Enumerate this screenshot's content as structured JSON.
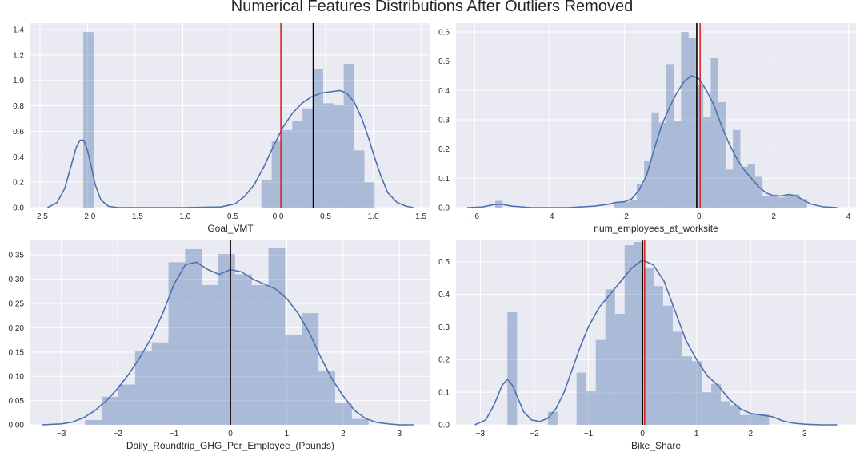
{
  "figure": {
    "title": "Numerical Features Distributions After Outliers Removed"
  },
  "style": {
    "panel_bg": "#eaeaf2",
    "grid": "#ffffff",
    "bar": "#4c72b0",
    "bar_opacity": 0.4,
    "kde": "#4c72b0",
    "mean_line": "#d62728",
    "median_line": "#000000"
  },
  "chart_data": [
    {
      "type": "bar",
      "id": "goal-vmt",
      "xlabel": "Goal_VMT",
      "xlim": [
        -2.6,
        1.6
      ],
      "ylim": [
        0,
        1.45
      ],
      "xticks": [
        -2.5,
        -2.0,
        -1.5,
        -1.0,
        -0.5,
        0.0,
        0.5,
        1.0,
        1.5
      ],
      "xtick_labels": [
        "−2.5",
        "−2.0",
        "−1.5",
        "−1.0",
        "−0.5",
        "0.0",
        "0.5",
        "1.0",
        "1.5"
      ],
      "yticks": [
        0.0,
        0.2,
        0.4,
        0.6,
        0.8,
        1.0,
        1.2,
        1.4
      ],
      "ytick_labels": [
        "0.0",
        "0.2",
        "0.4",
        "0.6",
        "0.8",
        "1.0",
        "1.2",
        "1.4"
      ],
      "bin_width": 0.1081,
      "bars": [
        {
          "x0": -2.045,
          "height": 1.38
        },
        {
          "x0": -0.1745,
          "height": 0.22
        },
        {
          "x0": -0.0664,
          "height": 0.52
        },
        {
          "x0": 0.0417,
          "height": 0.61
        },
        {
          "x0": 0.1498,
          "height": 0.68
        },
        {
          "x0": 0.2579,
          "height": 0.78
        },
        {
          "x0": 0.366,
          "height": 1.09
        },
        {
          "x0": 0.4741,
          "height": 0.82
        },
        {
          "x0": 0.5822,
          "height": 0.81
        },
        {
          "x0": 0.6903,
          "height": 1.13
        },
        {
          "x0": 0.7984,
          "height": 0.45
        },
        {
          "x0": 0.9065,
          "height": 0.2
        }
      ],
      "kde": {
        "x": [
          -2.42,
          -2.32,
          -2.24,
          -2.18,
          -2.12,
          -2.08,
          -2.04,
          -2.0,
          -1.96,
          -1.92,
          -1.86,
          -1.78,
          -1.68,
          -1.5,
          -1.0,
          -0.6,
          -0.45,
          -0.35,
          -0.25,
          -0.15,
          -0.05,
          0.05,
          0.15,
          0.25,
          0.35,
          0.45,
          0.55,
          0.65,
          0.72,
          0.8,
          0.88,
          0.95,
          1.02,
          1.08,
          1.15,
          1.25,
          1.35,
          1.42
        ],
        "y": [
          0.0,
          0.04,
          0.15,
          0.31,
          0.47,
          0.53,
          0.53,
          0.45,
          0.32,
          0.18,
          0.06,
          0.01,
          0.0,
          0.0,
          0.0,
          0.005,
          0.03,
          0.09,
          0.18,
          0.32,
          0.48,
          0.63,
          0.74,
          0.82,
          0.87,
          0.9,
          0.91,
          0.92,
          0.9,
          0.83,
          0.7,
          0.55,
          0.38,
          0.25,
          0.12,
          0.04,
          0.01,
          0.0
        ]
      },
      "mean": 0.03,
      "median": 0.37
    },
    {
      "type": "bar",
      "id": "num-employees",
      "xlabel": "num_employees_at_worksite",
      "xlim": [
        -6.5,
        4.2
      ],
      "ylim": [
        0,
        0.63
      ],
      "xticks": [
        -6,
        -4,
        -2,
        0,
        2,
        4
      ],
      "xtick_labels": [
        "−6",
        "−4",
        "−2",
        "0",
        "2",
        "4"
      ],
      "yticks": [
        0.0,
        0.1,
        0.2,
        0.3,
        0.4,
        0.5,
        0.6
      ],
      "ytick_labels": [
        "0.0",
        "0.1",
        "0.2",
        "0.3",
        "0.4",
        "0.5",
        "0.6"
      ],
      "bin_width": 0.198,
      "bars": [
        {
          "x0": -5.45,
          "height": 0.023
        },
        {
          "x0": -2.26,
          "height": 0.02
        },
        {
          "x0": -2.062,
          "height": 0.02
        },
        {
          "x0": -1.864,
          "height": 0.025
        },
        {
          "x0": -1.666,
          "height": 0.08
        },
        {
          "x0": -1.468,
          "height": 0.16
        },
        {
          "x0": -1.27,
          "height": 0.325
        },
        {
          "x0": -1.072,
          "height": 0.29
        },
        {
          "x0": -0.874,
          "height": 0.49
        },
        {
          "x0": -0.676,
          "height": 0.295
        },
        {
          "x0": -0.478,
          "height": 0.6
        },
        {
          "x0": -0.28,
          "height": 0.58
        },
        {
          "x0": -0.082,
          "height": 0.42
        },
        {
          "x0": 0.116,
          "height": 0.31
        },
        {
          "x0": 0.314,
          "height": 0.51
        },
        {
          "x0": 0.512,
          "height": 0.36
        },
        {
          "x0": 0.71,
          "height": 0.13
        },
        {
          "x0": 0.908,
          "height": 0.265
        },
        {
          "x0": 1.106,
          "height": 0.14
        },
        {
          "x0": 1.304,
          "height": 0.15
        },
        {
          "x0": 1.502,
          "height": 0.105
        },
        {
          "x0": 1.7,
          "height": 0.04
        },
        {
          "x0": 1.898,
          "height": 0.045
        },
        {
          "x0": 2.096,
          "height": 0.035
        },
        {
          "x0": 2.294,
          "height": 0.045
        },
        {
          "x0": 2.492,
          "height": 0.045
        },
        {
          "x0": 2.69,
          "height": 0.03
        }
      ],
      "kde": {
        "x": [
          -6.2,
          -5.8,
          -5.5,
          -5.3,
          -5.0,
          -4.5,
          -3.5,
          -2.8,
          -2.4,
          -2.2,
          -2.0,
          -1.8,
          -1.6,
          -1.4,
          -1.2,
          -1.0,
          -0.8,
          -0.6,
          -0.4,
          -0.2,
          0.0,
          0.2,
          0.4,
          0.6,
          0.8,
          1.0,
          1.2,
          1.4,
          1.6,
          1.8,
          2.0,
          2.2,
          2.4,
          2.6,
          2.8,
          3.0,
          3.3,
          3.7
        ],
        "y": [
          0.0,
          0.002,
          0.01,
          0.012,
          0.005,
          0.0,
          0.0,
          0.005,
          0.012,
          0.018,
          0.02,
          0.03,
          0.06,
          0.11,
          0.2,
          0.28,
          0.34,
          0.39,
          0.43,
          0.45,
          0.44,
          0.4,
          0.35,
          0.28,
          0.22,
          0.17,
          0.13,
          0.1,
          0.07,
          0.05,
          0.04,
          0.04,
          0.045,
          0.04,
          0.025,
          0.012,
          0.003,
          0.0
        ]
      },
      "mean": 0.03,
      "median": -0.06
    },
    {
      "type": "bar",
      "id": "ghg",
      "xlabel": "Daily_Roundtrip_GHG_Per_Employee_(Pounds)",
      "xlim": [
        -3.55,
        3.55
      ],
      "ylim": [
        0,
        0.38
      ],
      "xticks": [
        -3,
        -2,
        -1,
        0,
        1,
        2,
        3
      ],
      "xtick_labels": [
        "−3",
        "−2",
        "−1",
        "0",
        "1",
        "2",
        "3"
      ],
      "yticks": [
        0.0,
        0.05,
        0.1,
        0.15,
        0.2,
        0.25,
        0.3,
        0.35
      ],
      "ytick_labels": [
        "0.00",
        "0.05",
        "0.10",
        "0.15",
        "0.20",
        "0.25",
        "0.30",
        "0.35"
      ],
      "bin_width": 0.296,
      "bars": [
        {
          "x0": -2.58,
          "height": 0.01
        },
        {
          "x0": -2.284,
          "height": 0.058
        },
        {
          "x0": -1.988,
          "height": 0.083
        },
        {
          "x0": -1.692,
          "height": 0.153
        },
        {
          "x0": -1.396,
          "height": 0.17
        },
        {
          "x0": -1.1,
          "height": 0.335
        },
        {
          "x0": -0.804,
          "height": 0.362
        },
        {
          "x0": -0.508,
          "height": 0.288
        },
        {
          "x0": -0.212,
          "height": 0.352
        },
        {
          "x0": 0.084,
          "height": 0.31
        },
        {
          "x0": 0.38,
          "height": 0.288
        },
        {
          "x0": 0.676,
          "height": 0.365
        },
        {
          "x0": 0.972,
          "height": 0.185
        },
        {
          "x0": 1.268,
          "height": 0.23
        },
        {
          "x0": 1.564,
          "height": 0.11
        },
        {
          "x0": 1.86,
          "height": 0.045
        },
        {
          "x0": 2.156,
          "height": 0.012
        }
      ],
      "kde": {
        "x": [
          -3.35,
          -3.0,
          -2.8,
          -2.6,
          -2.4,
          -2.2,
          -2.0,
          -1.8,
          -1.6,
          -1.4,
          -1.2,
          -1.0,
          -0.8,
          -0.6,
          -0.4,
          -0.2,
          0.0,
          0.2,
          0.4,
          0.6,
          0.8,
          1.0,
          1.2,
          1.4,
          1.6,
          1.8,
          2.0,
          2.2,
          2.4,
          2.6,
          2.8,
          3.0,
          3.25
        ],
        "y": [
          0.0,
          0.002,
          0.006,
          0.015,
          0.03,
          0.05,
          0.075,
          0.105,
          0.14,
          0.18,
          0.23,
          0.29,
          0.33,
          0.335,
          0.32,
          0.31,
          0.32,
          0.315,
          0.3,
          0.29,
          0.28,
          0.26,
          0.23,
          0.19,
          0.14,
          0.095,
          0.06,
          0.03,
          0.013,
          0.005,
          0.002,
          0.0,
          0.0
        ]
      },
      "mean": 0.0,
      "median": 0.0
    },
    {
      "type": "bar",
      "id": "bike-share",
      "xlabel": "Bike_Share",
      "xlim": [
        -3.45,
        3.95
      ],
      "ylim": [
        0,
        0.565
      ],
      "xticks": [
        -3,
        -2,
        -1,
        0,
        1,
        2,
        3
      ],
      "xtick_labels": [
        "−3",
        "−2",
        "−1",
        "0",
        "1",
        "2",
        "3"
      ],
      "yticks": [
        0.0,
        0.1,
        0.2,
        0.3,
        0.4,
        0.5
      ],
      "ytick_labels": [
        "0.0",
        "0.1",
        "0.2",
        "0.3",
        "0.4",
        "0.5"
      ],
      "bin_width": 0.178,
      "bars": [
        {
          "x0": -2.5,
          "height": 0.345
        },
        {
          "x0": -1.75,
          "height": 0.04
        },
        {
          "x0": -1.22,
          "height": 0.16
        },
        {
          "x0": -1.042,
          "height": 0.105
        },
        {
          "x0": -0.864,
          "height": 0.26
        },
        {
          "x0": -0.686,
          "height": 0.415
        },
        {
          "x0": -0.508,
          "height": 0.34
        },
        {
          "x0": -0.33,
          "height": 0.55
        },
        {
          "x0": -0.152,
          "height": 0.56
        },
        {
          "x0": 0.026,
          "height": 0.48
        },
        {
          "x0": 0.204,
          "height": 0.425
        },
        {
          "x0": 0.382,
          "height": 0.365
        },
        {
          "x0": 0.56,
          "height": 0.285
        },
        {
          "x0": 0.738,
          "height": 0.21
        },
        {
          "x0": 0.916,
          "height": 0.195
        },
        {
          "x0": 1.094,
          "height": 0.1
        },
        {
          "x0": 1.272,
          "height": 0.125
        },
        {
          "x0": 1.45,
          "height": 0.072
        },
        {
          "x0": 1.628,
          "height": 0.06
        },
        {
          "x0": 1.806,
          "height": 0.03
        },
        {
          "x0": 1.984,
          "height": 0.032
        },
        {
          "x0": 2.162,
          "height": 0.032
        }
      ],
      "kde": {
        "x": [
          -3.1,
          -2.9,
          -2.75,
          -2.6,
          -2.5,
          -2.4,
          -2.3,
          -2.2,
          -2.05,
          -1.9,
          -1.75,
          -1.6,
          -1.45,
          -1.3,
          -1.15,
          -1.0,
          -0.8,
          -0.6,
          -0.4,
          -0.2,
          0.0,
          0.2,
          0.4,
          0.6,
          0.8,
          1.0,
          1.2,
          1.4,
          1.6,
          1.8,
          2.0,
          2.2,
          2.4,
          2.6,
          2.8,
          3.0,
          3.3,
          3.6
        ],
        "y": [
          0.0,
          0.015,
          0.06,
          0.12,
          0.14,
          0.12,
          0.08,
          0.04,
          0.015,
          0.01,
          0.02,
          0.05,
          0.1,
          0.17,
          0.24,
          0.3,
          0.36,
          0.4,
          0.44,
          0.48,
          0.505,
          0.49,
          0.44,
          0.35,
          0.26,
          0.2,
          0.15,
          0.12,
          0.08,
          0.05,
          0.035,
          0.03,
          0.025,
          0.012,
          0.005,
          0.002,
          0.0,
          0.0
        ]
      },
      "mean": 0.04,
      "median": 0.0
    }
  ]
}
